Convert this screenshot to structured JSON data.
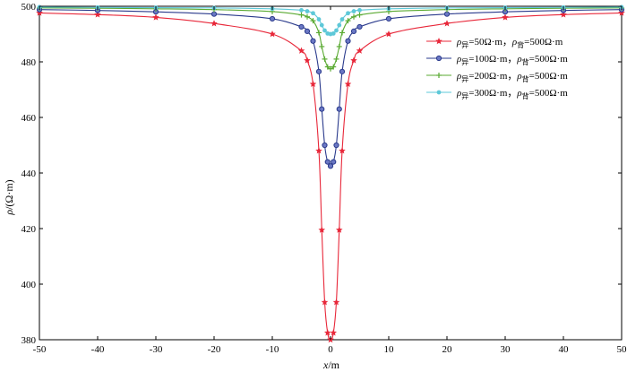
{
  "chart_data": {
    "type": "line",
    "xlabel_var": "x",
    "xlabel_unit": "/m",
    "ylabel_var": "ρ",
    "ylabel_unit": "/(Ω·m)",
    "xlim": [
      -50,
      50
    ],
    "ylim": [
      380,
      500
    ],
    "xticks": [
      -50,
      -40,
      -30,
      -20,
      -10,
      0,
      10,
      20,
      30,
      40,
      50
    ],
    "yticks": [
      380,
      400,
      420,
      440,
      460,
      480,
      500
    ],
    "grid": false,
    "legend_position": "top-right",
    "series": [
      {
        "name": "ρ异=50Ω·m，ρ背=500Ω·m",
        "legend_parts": [
          "ρ",
          "异",
          "=50Ω·m，",
          "ρ",
          "背",
          "=500Ω·m"
        ],
        "color": "#e8283a",
        "marker": "star",
        "x": [
          -50,
          -40,
          -30,
          -20,
          -10,
          -5,
          -4,
          -3,
          -2,
          -1.5,
          -1,
          -0.5,
          0,
          0.5,
          1,
          1.5,
          2,
          3,
          4,
          5,
          10,
          20,
          30,
          40,
          50
        ],
        "y": [
          497.6,
          497.0,
          496.0,
          493.8,
          490.0,
          484.0,
          480.5,
          472.0,
          448.0,
          419.5,
          393.5,
          382.5,
          380.0,
          382.5,
          393.5,
          419.5,
          448.0,
          472.0,
          480.5,
          484.0,
          490.0,
          493.8,
          496.0,
          497.0,
          497.6
        ]
      },
      {
        "name": "ρ异=100Ω·m，ρ背=500Ω·m",
        "legend_parts": [
          "ρ",
          "异",
          "=100Ω·m，",
          "ρ",
          "背",
          "=500Ω·m"
        ],
        "color": "#2a3a8c",
        "marker": "circle",
        "x": [
          -50,
          -40,
          -30,
          -20,
          -10,
          -5,
          -4,
          -3,
          -2,
          -1.5,
          -1,
          -0.5,
          0,
          0.5,
          1,
          1.5,
          2,
          3,
          4,
          5,
          10,
          20,
          30,
          40,
          50
        ],
        "y": [
          498.8,
          498.5,
          498.0,
          497.2,
          495.5,
          492.6,
          491.0,
          487.5,
          476.5,
          463.0,
          450.0,
          444.0,
          442.5,
          444.0,
          450.0,
          463.0,
          476.5,
          487.5,
          491.0,
          492.6,
          495.5,
          497.2,
          498.0,
          498.5,
          498.8
        ]
      },
      {
        "name": "ρ异=200Ω·m，ρ背=500Ω·m",
        "legend_parts": [
          "ρ",
          "异",
          "=200Ω·m，",
          "ρ",
          "背",
          "=500Ω·m"
        ],
        "color": "#5aaa32",
        "marker": "plus",
        "x": [
          -50,
          -40,
          -30,
          -20,
          -10,
          -5,
          -4,
          -3,
          -2,
          -1.5,
          -1,
          -0.5,
          0,
          0.5,
          1,
          1.5,
          2,
          3,
          4,
          5,
          10,
          20,
          30,
          40,
          50
        ],
        "y": [
          499.4,
          499.3,
          499.1,
          498.8,
          498.1,
          496.9,
          496.2,
          494.8,
          490.5,
          485.5,
          481.0,
          478.2,
          477.5,
          478.2,
          481.0,
          485.5,
          490.5,
          494.8,
          496.2,
          496.9,
          498.1,
          498.8,
          499.1,
          499.3,
          499.4
        ]
      },
      {
        "name": "ρ异=300Ω·m，ρ背=500Ω·m",
        "legend_parts": [
          "ρ",
          "异",
          "=300Ω·m，",
          "ρ",
          "背",
          "=500Ω·m"
        ],
        "color": "#5ec8d8",
        "marker": "circle-small",
        "x": [
          -50,
          -40,
          -30,
          -20,
          -10,
          -5,
          -4,
          -3,
          -2,
          -1.5,
          -1,
          -0.5,
          0,
          0.5,
          1,
          1.5,
          2,
          3,
          4,
          5,
          10,
          20,
          30,
          40,
          50
        ],
        "y": [
          499.7,
          499.6,
          499.5,
          499.4,
          499.1,
          498.6,
          498.2,
          497.5,
          495.3,
          493.2,
          491.3,
          490.2,
          490.0,
          490.2,
          491.3,
          493.2,
          495.3,
          497.5,
          498.2,
          498.6,
          499.1,
          499.4,
          499.5,
          499.6,
          499.7
        ]
      }
    ]
  }
}
